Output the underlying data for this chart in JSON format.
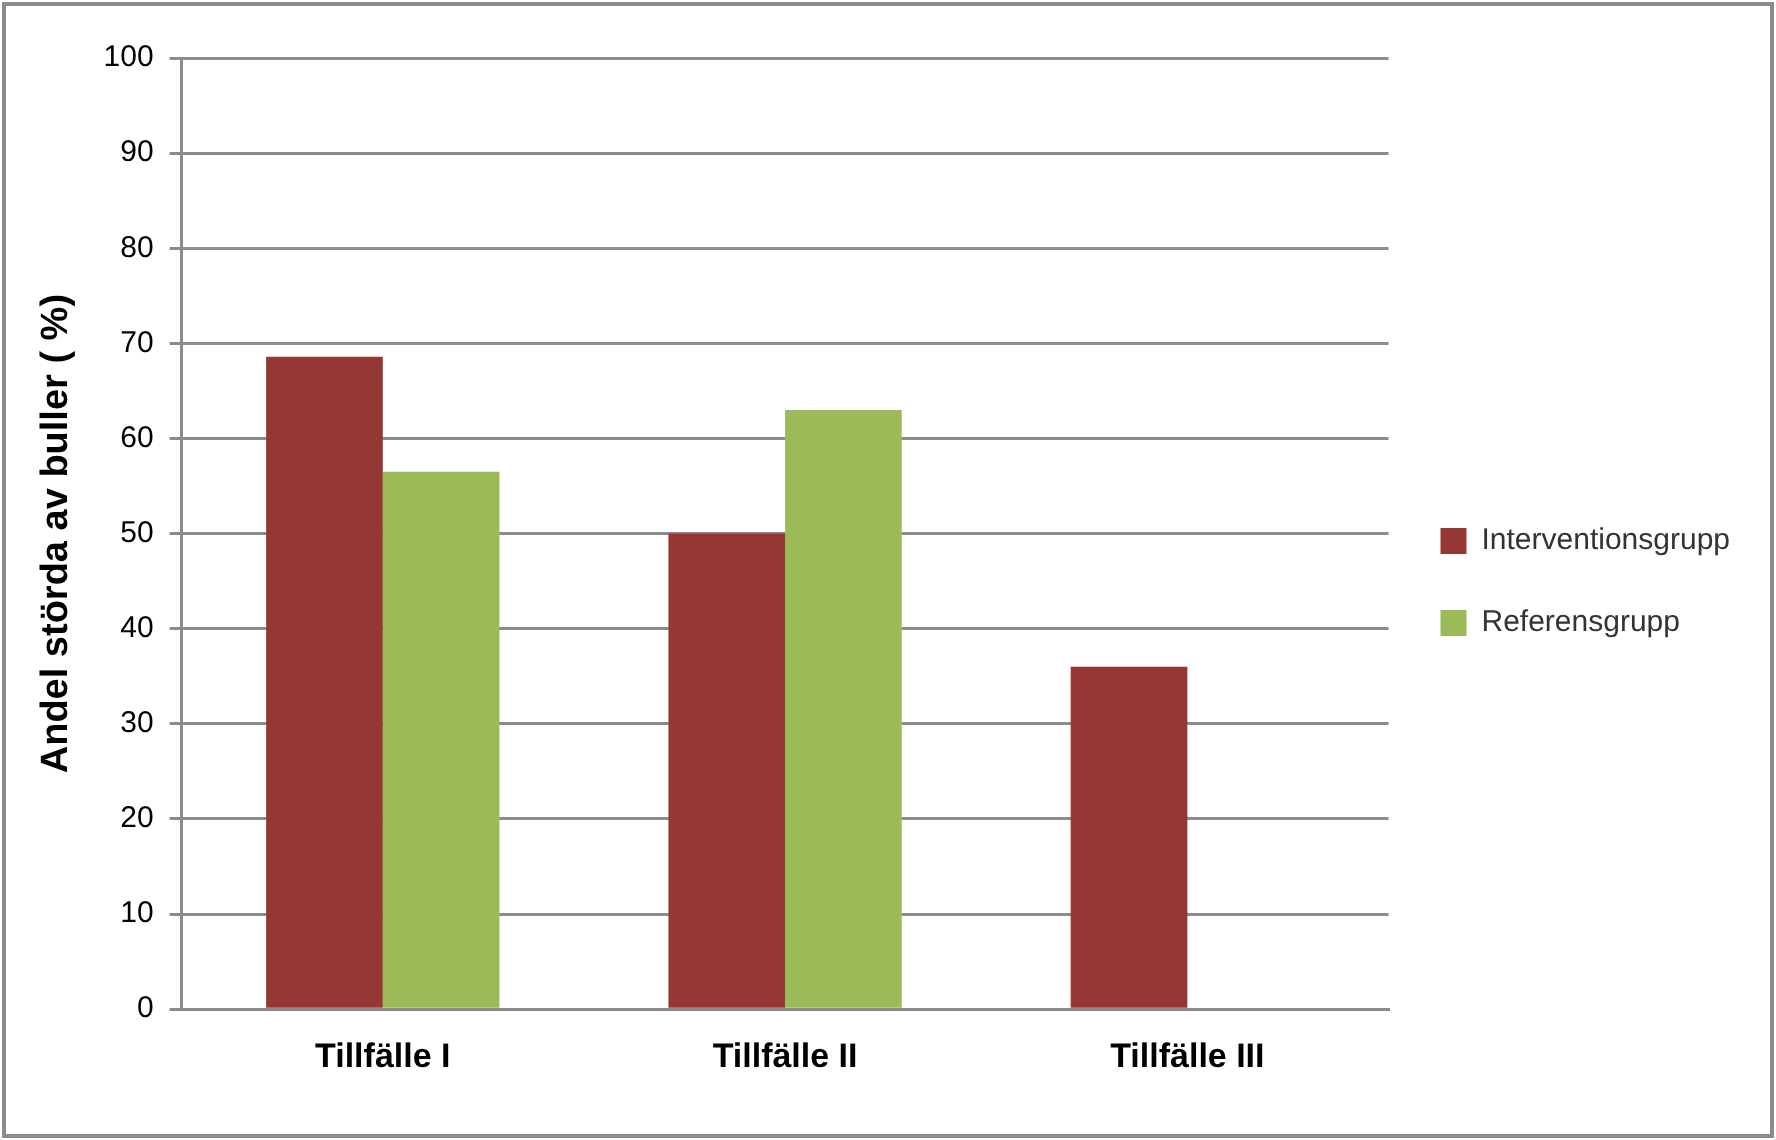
{
  "chart_data": {
    "type": "bar",
    "ylabel": "Andel störda av buller ( %)",
    "categories": [
      "Tillfälle I",
      "Tillfälle II",
      "Tillfälle III"
    ],
    "series": [
      {
        "name": "Interventionsgrupp",
        "color": "#953735",
        "values": [
          68.6,
          50,
          36
        ]
      },
      {
        "name": "Referensgrupp",
        "color": "#9bbb59",
        "values": [
          56.5,
          63,
          null
        ]
      }
    ],
    "ylim": [
      0,
      100
    ],
    "yticks": [
      0,
      10,
      20,
      30,
      40,
      50,
      60,
      70,
      80,
      90,
      100
    ],
    "grid": "y",
    "legend": "right"
  }
}
